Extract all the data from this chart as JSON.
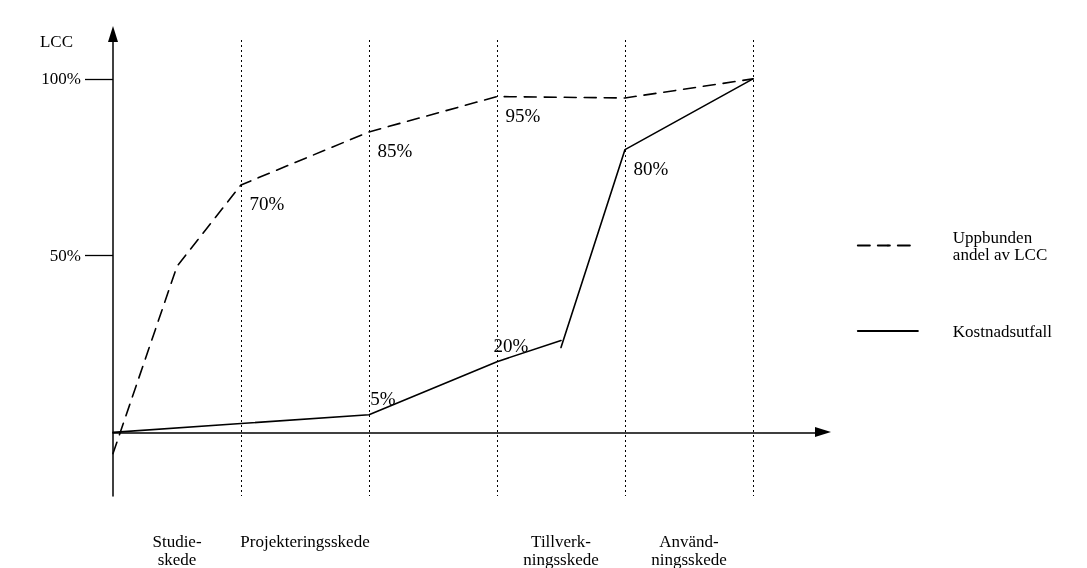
{
  "chart_data": {
    "type": "line",
    "ylabel": "LCC",
    "categories": [
      null,
      "Studie-\nskede",
      null,
      "Projekteringsskede",
      null,
      null,
      null,
      "Tillverk-\nningsskede",
      null,
      "Använd-\nningsskede",
      null,
      null
    ],
    "series": [
      {
        "name": "Uppbunden andel av LCC",
        "color": "#000000",
        "line_style": "dashed",
        "values": [
          -6,
          47,
          70,
          null,
          85,
          null,
          95,
          null,
          94.6,
          null,
          100,
          null
        ],
        "value_labels": [
          null,
          null,
          "70%",
          null,
          "85%",
          null,
          "95%",
          null,
          null,
          null,
          null,
          null
        ]
      },
      {
        "name": "Kostnadsutfall",
        "color": "#000000",
        "line_style": "solid",
        "values": [
          0,
          null,
          2.5,
          null,
          5,
          null,
          20,
          26,
          null,
          null,
          null,
          null
        ],
        "value_labels": [
          null,
          null,
          null,
          null,
          "5%",
          null,
          "20%",
          null,
          null,
          null,
          null,
          null
        ]
      },
      {
        "color": "#000000",
        "line_style": "solid",
        "values": [
          null,
          null,
          null,
          null,
          null,
          null,
          null,
          24,
          80,
          null,
          100,
          null
        ],
        "value_labels": [
          null,
          null,
          null,
          null,
          null,
          null,
          null,
          null,
          "80%",
          null,
          null,
          null
        ]
      }
    ],
    "ylim": [
      -18,
      111
    ],
    "yticks": [
      {
        "value": 50,
        "label": "50%"
      },
      {
        "value": 100,
        "label": "100%"
      }
    ],
    "grid": "x",
    "legend": "right",
    "marker": "none"
  }
}
